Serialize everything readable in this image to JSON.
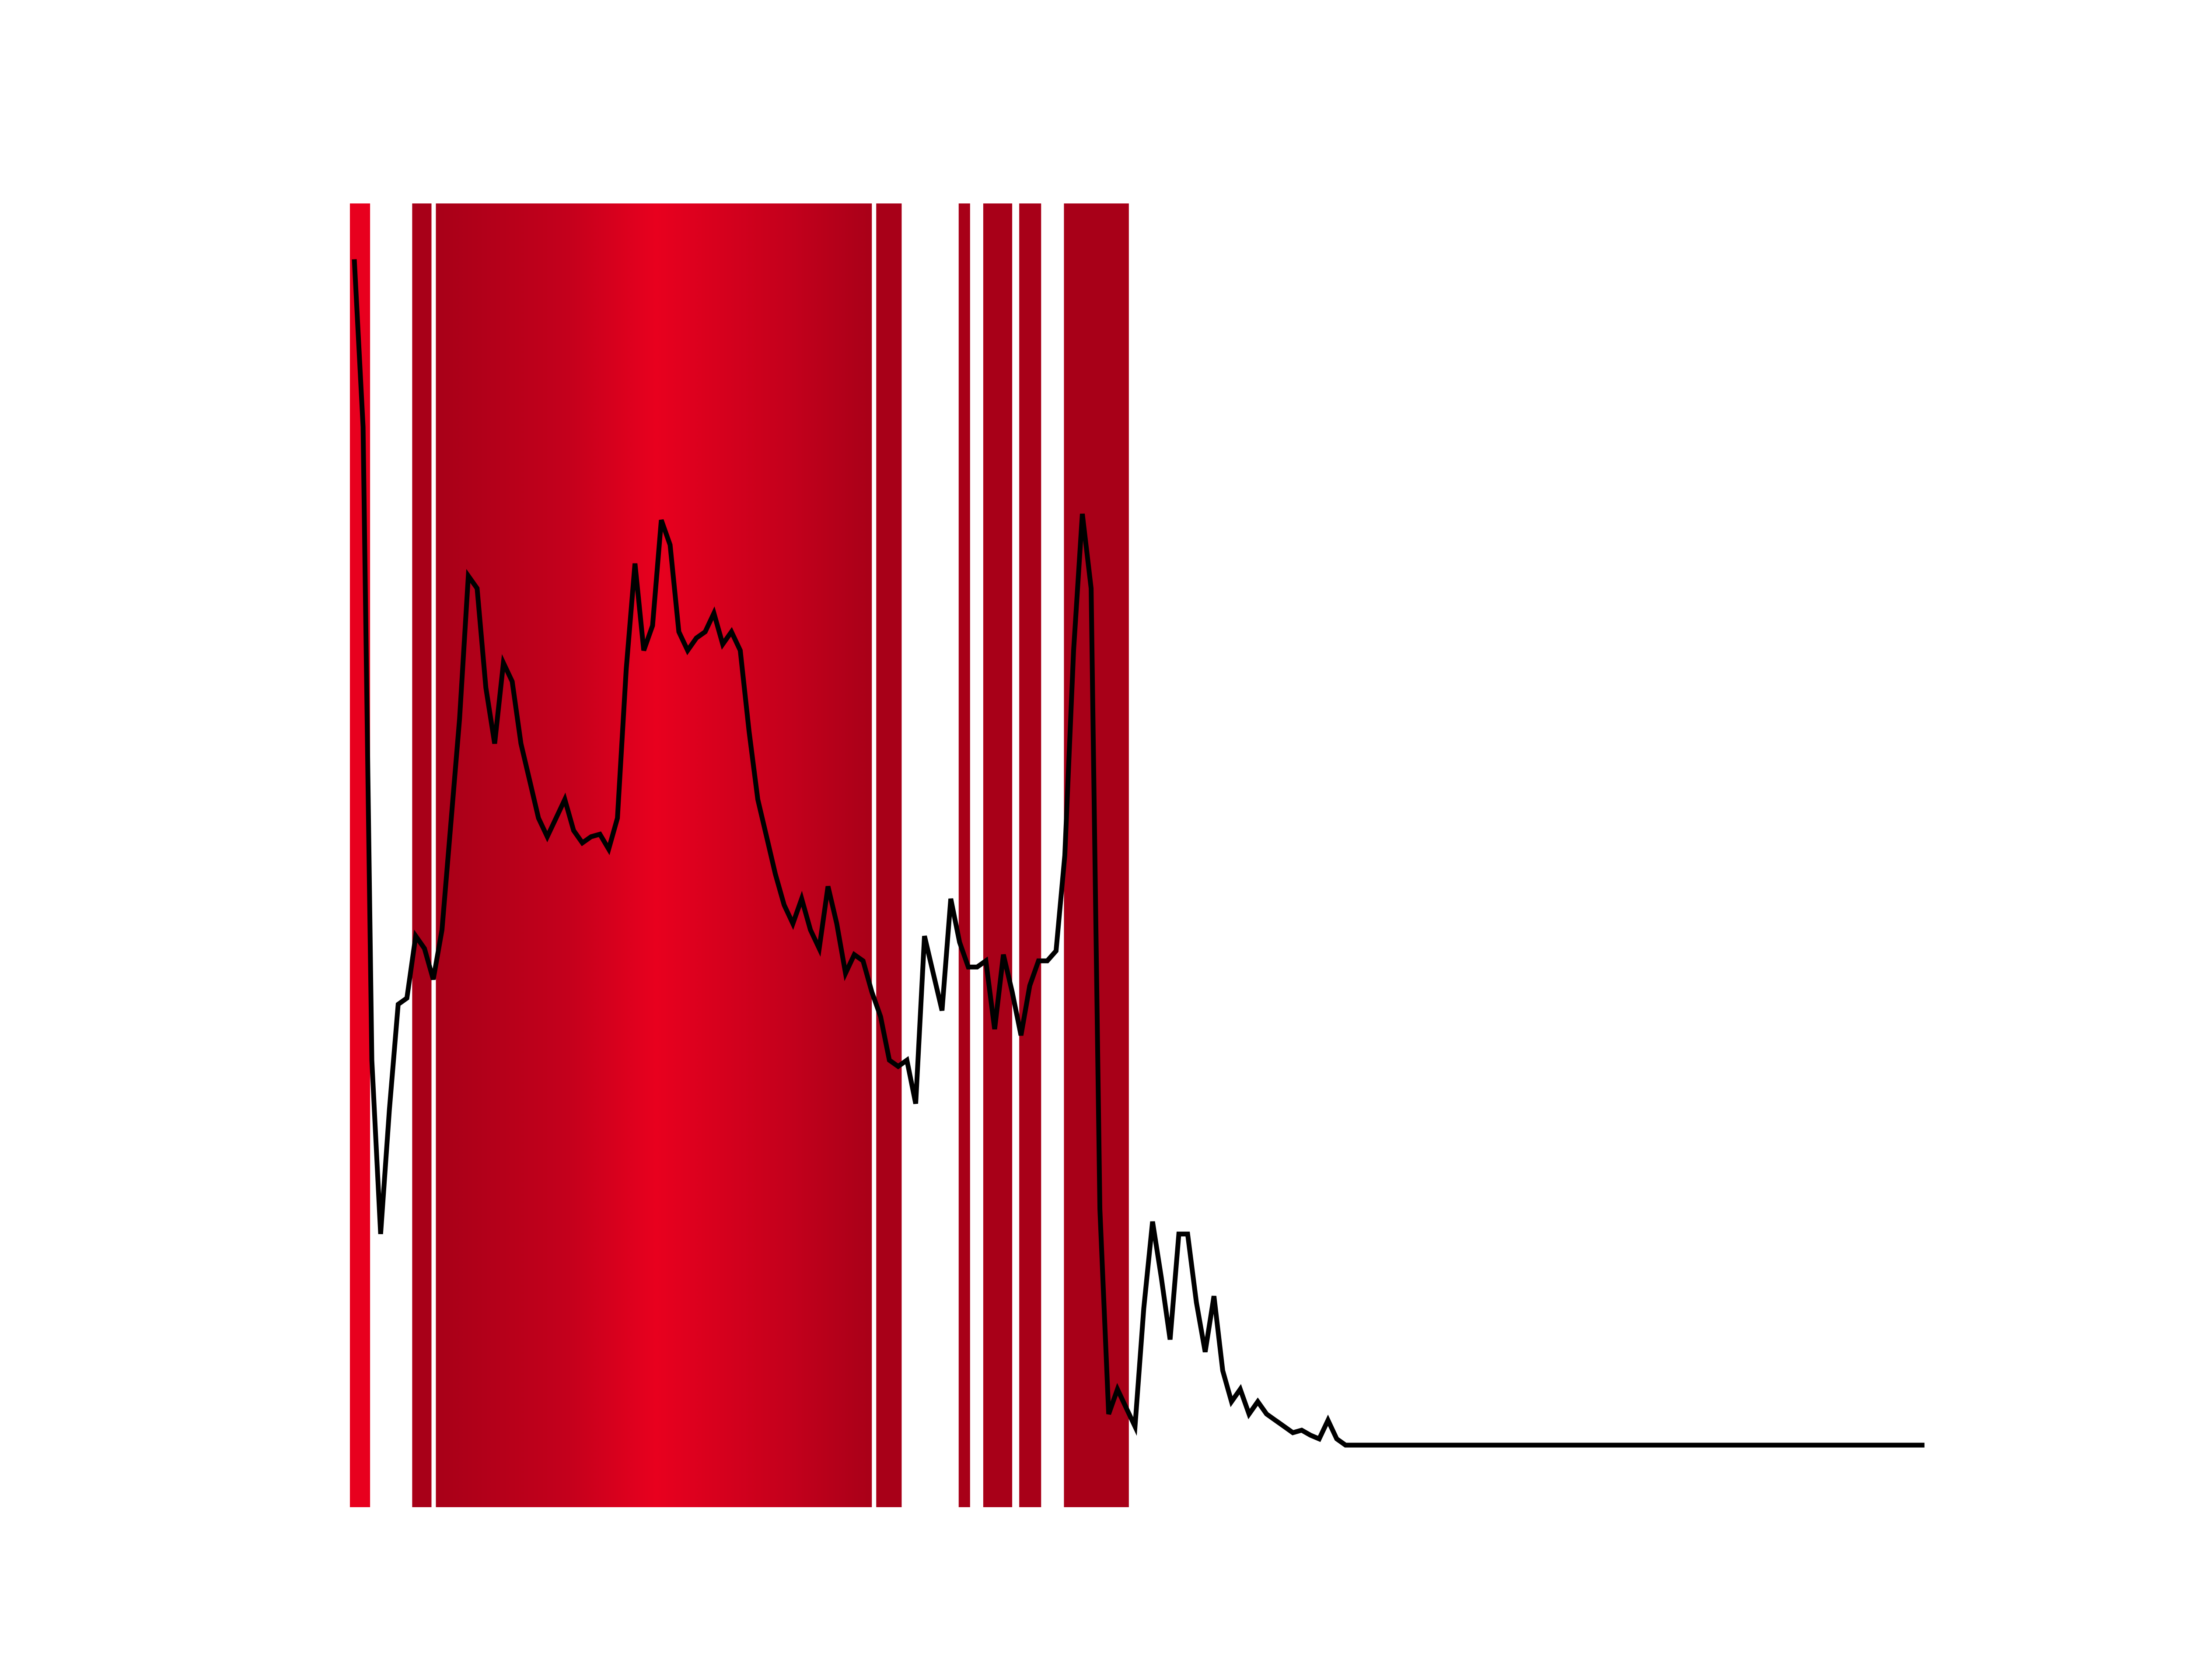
{
  "chart_data": {
    "type": "line",
    "title": "",
    "xlabel": "",
    "ylabel": "",
    "axes_visible": false,
    "grid": false,
    "xlim": [
      0,
      183
    ],
    "ylim": [
      -0.05,
      1.0
    ],
    "line_color": "#000000",
    "band_color": "#c4001c",
    "band_color_light": "#e8001e",
    "band_color_dark": "#a80018",
    "series": [
      {
        "values": [
          0.955,
          0.82,
          0.31,
          0.17,
          0.27,
          0.355,
          0.36,
          0.41,
          0.4,
          0.375,
          0.415,
          0.5,
          0.585,
          0.7,
          0.69,
          0.61,
          0.565,
          0.63,
          0.615,
          0.565,
          0.535,
          0.505,
          0.49,
          0.505,
          0.52,
          0.495,
          0.485,
          0.49,
          0.492,
          0.48,
          0.505,
          0.625,
          0.71,
          0.64,
          0.66,
          0.745,
          0.725,
          0.655,
          0.64,
          0.65,
          0.655,
          0.67,
          0.645,
          0.655,
          0.64,
          0.575,
          0.52,
          0.49,
          0.46,
          0.435,
          0.42,
          0.44,
          0.415,
          0.4,
          0.45,
          0.42,
          0.38,
          0.395,
          0.39,
          0.365,
          0.345,
          0.31,
          0.305,
          0.31,
          0.275,
          0.41,
          0.38,
          0.35,
          0.44,
          0.405,
          0.385,
          0.385,
          0.39,
          0.335,
          0.395,
          0.365,
          0.33,
          0.37,
          0.39,
          0.39,
          0.398,
          0.475,
          0.64,
          0.75,
          0.69,
          0.19,
          0.025,
          0.045,
          0.03,
          0.015,
          0.11,
          0.18,
          0.135,
          0.085,
          0.17,
          0.17,
          0.115,
          0.075,
          0.12,
          0.06,
          0.035,
          0.045,
          0.025,
          0.035,
          0.025,
          0.02,
          0.015,
          0.01,
          0.012,
          0.008,
          0.005,
          0.02,
          0.005,
          0.0,
          0.0,
          0.0,
          0.0,
          0.0,
          0.0,
          0.0,
          0.0,
          0.0,
          0.0,
          0.0,
          0.0,
          0.0,
          0.0,
          0.0,
          0.0,
          0.0,
          0.0,
          0.0,
          0.0,
          0.0,
          0.0,
          0.0,
          0.0,
          0.0,
          0.0,
          0.0,
          0.0,
          0.0,
          0.0,
          0.0,
          0.0,
          0.0,
          0.0,
          0.0,
          0.0,
          0.0,
          0.0,
          0.0,
          0.0,
          0.0,
          0.0,
          0.0,
          0.0,
          0.0,
          0.0,
          0.0,
          0.0,
          0.0,
          0.0,
          0.0,
          0.0,
          0.0,
          0.0,
          0.0,
          0.0,
          0.0,
          0.0,
          0.0,
          0.0,
          0.0,
          0.0,
          0.0,
          0.0,
          0.0,
          0.0,
          0.0
        ]
      }
    ],
    "bands": [
      {
        "x_start": -0.5,
        "x_end": 1.8,
        "intensity": 0.95
      },
      {
        "x_start": 6.6,
        "x_end": 8.8,
        "intensity": 0.55
      },
      {
        "x_start": 9.3,
        "x_end": 59.0,
        "intensity": 0.75
      },
      {
        "x_start": 59.5,
        "x_end": 62.4,
        "intensity": 0.55
      },
      {
        "x_start": 68.9,
        "x_end": 70.2,
        "intensity": 0.55
      },
      {
        "x_start": 71.7,
        "x_end": 75.0,
        "intensity": 0.5
      },
      {
        "x_start": 75.8,
        "x_end": 78.3,
        "intensity": 0.5
      },
      {
        "x_start": 80.9,
        "x_end": 88.3,
        "intensity": 0.8
      }
    ]
  }
}
